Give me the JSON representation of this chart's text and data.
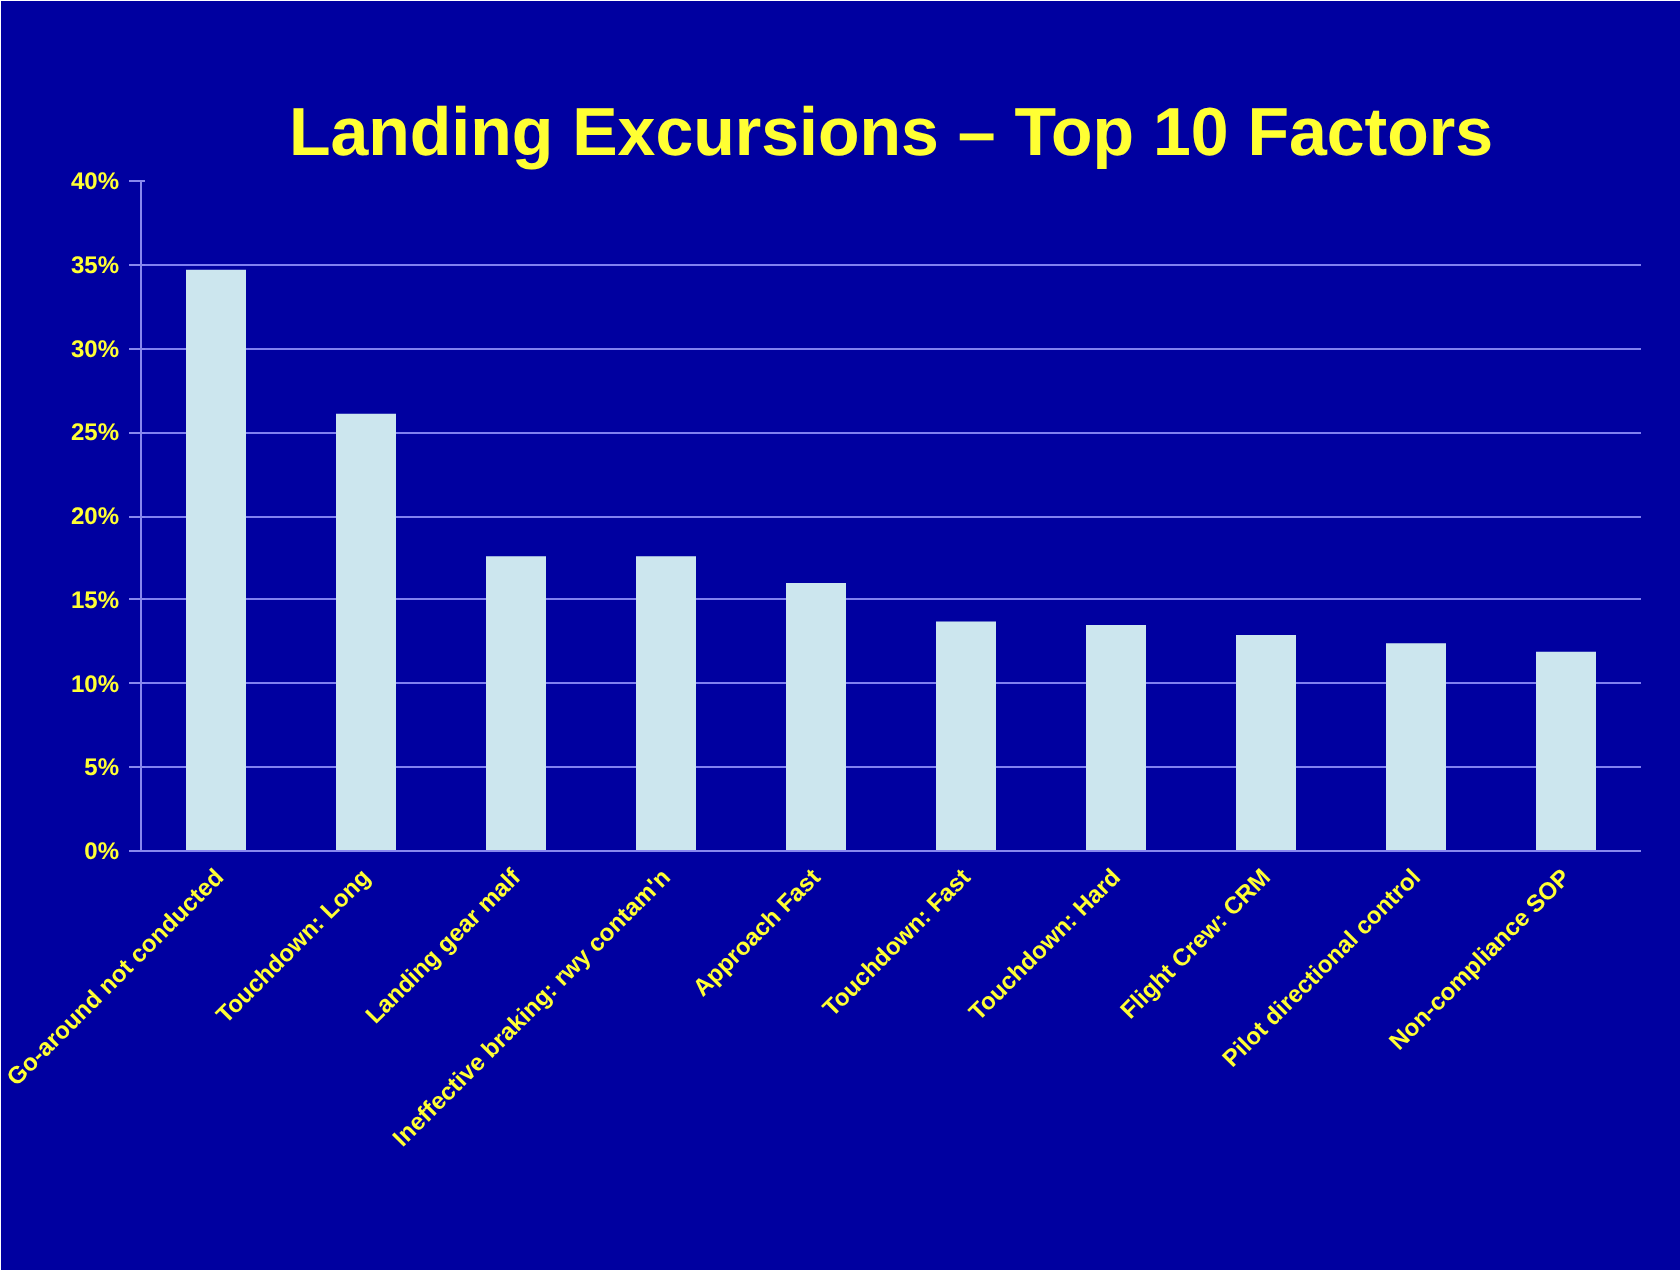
{
  "chart_data": {
    "type": "bar",
    "title": "Landing Excursions – Top 10 Factors",
    "categories": [
      "Go-around not conducted",
      "Touchdown: Long",
      "Landing gear malf",
      "Ineffective braking: rwy contam'n",
      "Approach Fast",
      "Touchdown: Fast",
      "Touchdown: Hard",
      "Flight Crew: CRM",
      "Pilot directional control",
      "Non-compliance SOP"
    ],
    "values": [
      34.7,
      26.1,
      17.6,
      17.6,
      16.0,
      13.7,
      13.5,
      12.9,
      12.4,
      11.9
    ],
    "color": "#cce6ee",
    "ylim": [
      0,
      40
    ],
    "yticks": [
      {
        "value": 0,
        "label": "0%"
      },
      {
        "value": 5,
        "label": "5%"
      },
      {
        "value": 10,
        "label": "10%"
      },
      {
        "value": 15,
        "label": "15%"
      },
      {
        "value": 20,
        "label": "20%"
      },
      {
        "value": 25,
        "label": "25%"
      },
      {
        "value": 30,
        "label": "30%"
      },
      {
        "value": 35,
        "label": "35%"
      },
      {
        "value": 40,
        "label": "40%"
      }
    ],
    "grid": "y"
  }
}
